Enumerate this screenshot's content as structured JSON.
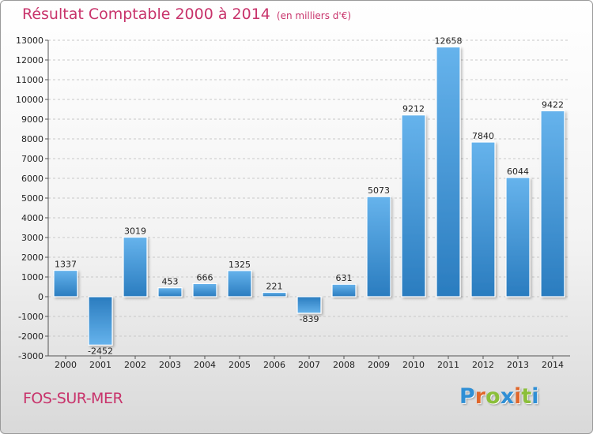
{
  "title": "Résultat Comptable 2000 à 2014",
  "subtitle": "(en milliers d'€)",
  "city": "FOS-SUR-MER",
  "brand": "Proxiti",
  "colors": {
    "title": "#c8336b",
    "bar_light": "#62b0ea",
    "bar_dark": "#2c7fc0"
  },
  "chart_data": {
    "type": "bar",
    "title": "Résultat Comptable 2000 à 2014",
    "subtitle": "(en milliers d'€)",
    "categories": [
      "2000",
      "2001",
      "2002",
      "2003",
      "2004",
      "2005",
      "2006",
      "2007",
      "2008",
      "2009",
      "2010",
      "2011",
      "2012",
      "2013",
      "2014"
    ],
    "values": [
      1337,
      -2452,
      3019,
      453,
      666,
      1325,
      221,
      -839,
      631,
      5073,
      9212,
      12658,
      7840,
      6044,
      9422
    ],
    "ylim": [
      -3000,
      13000
    ],
    "yticks": [
      -3000,
      -2000,
      -1000,
      0,
      1000,
      2000,
      3000,
      4000,
      5000,
      6000,
      7000,
      8000,
      9000,
      10000,
      11000,
      12000,
      13000
    ],
    "grid": true,
    "legend": "none"
  }
}
